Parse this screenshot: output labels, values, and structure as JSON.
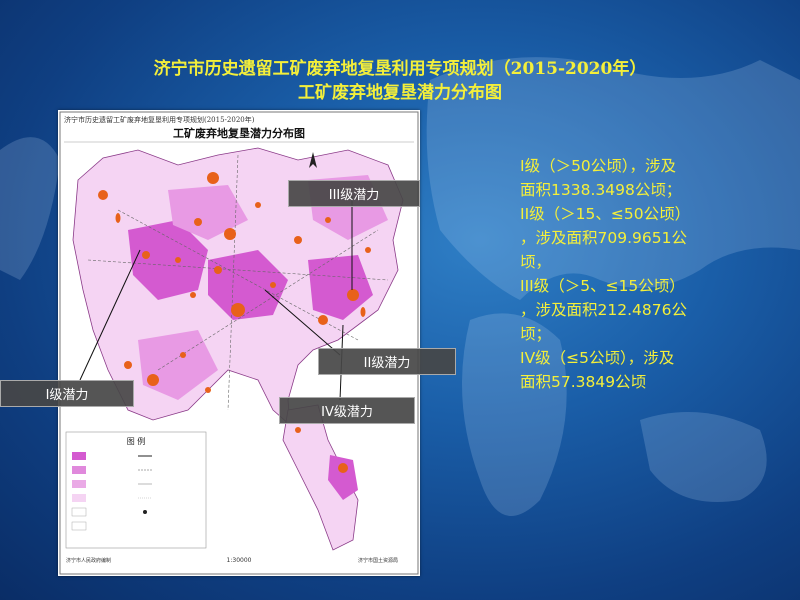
{
  "slide": {
    "title_line1": "济宁市历史遗留工矿废弃地复垦利用专项规划（2015-2020年）",
    "title_line2": "工矿废弃地复垦潜力分布图"
  },
  "map": {
    "header": "济宁市历史遗留工矿废弃地复垦利用专项规划(2015-2020年)",
    "title": "工矿废弃地复垦潜力分布图",
    "legend_title": "图    例",
    "footer_scale": "1:30000",
    "footer_left": "济宁市人民政府编制",
    "footer_right": "济宁市国土资源局"
  },
  "callouts": {
    "level3": "III级潜力",
    "level2": "II级潜力",
    "level1": "I级潜力",
    "level4": "IV级潜力"
  },
  "stats": {
    "line1": "I级（＞50公顷），涉及\n面积1338.3498公顷；",
    "line2": "II级（＞15、≤50公顷）\n，涉及面积709.9651公\n顷，",
    "line3": "III级（＞5、≤15公顷）\n，涉及面积212.4876公\n顷；",
    "line4": "IV级（≤5公顷），涉及\n面积57.3849公顷"
  },
  "colors": {
    "title": "#f4ef3a",
    "stats_text": "#f4ef3a",
    "region_dark": "#d45ad0",
    "region_mid": "#e89ae4",
    "region_light": "#f5d4f3",
    "marker": "#e8611a"
  }
}
